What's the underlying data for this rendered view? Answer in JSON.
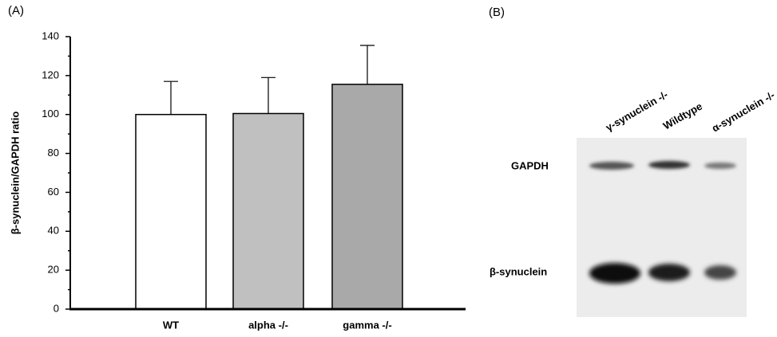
{
  "chart_data": {
    "type": "bar",
    "panel_label": "(A)",
    "y_label": "β-synuclein/GAPDH ratio",
    "categories": [
      "WT",
      "alpha -/-",
      "gamma -/-"
    ],
    "values": [
      100,
      100.5,
      115.5
    ],
    "errors": [
      17,
      18.5,
      20
    ],
    "colors": [
      "#ffffff",
      "#c0c0c0",
      "#a9a9a9"
    ],
    "ylim": [
      0,
      140
    ],
    "yticks": [
      0,
      20,
      40,
      60,
      80,
      100,
      120,
      140
    ],
    "minor_yticks": [
      10,
      30,
      50,
      70,
      90,
      110,
      130
    ]
  },
  "blot": {
    "panel_label": "(B)",
    "lanes": [
      "γ-synuclein -/-",
      "Wildtype",
      "α-synuclein -/-"
    ],
    "rows": [
      "GAPDH",
      "β-synuclein"
    ]
  }
}
